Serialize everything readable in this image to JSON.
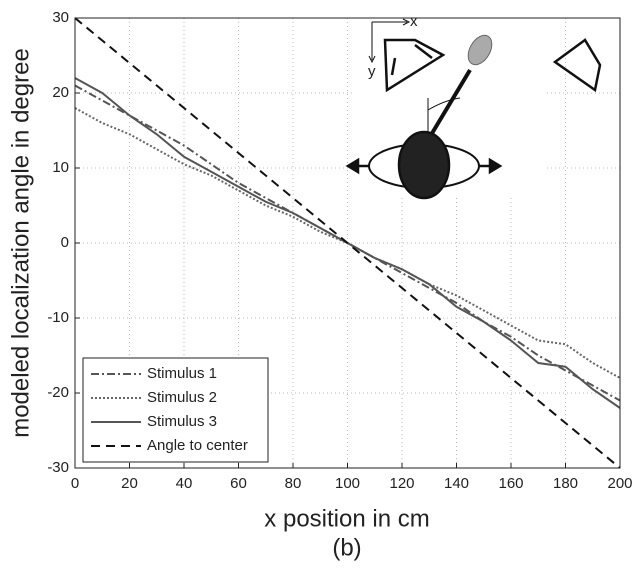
{
  "chart_data": {
    "type": "line",
    "xlabel": "x position in cm",
    "ylabel": "modeled localization angle in degree",
    "caption": "(b)",
    "inset_labels": [
      "x",
      "y"
    ],
    "x": [
      0,
      10,
      20,
      30,
      40,
      50,
      60,
      70,
      80,
      90,
      100,
      110,
      120,
      130,
      140,
      150,
      160,
      170,
      180,
      190,
      200
    ],
    "series": [
      {
        "name": "Stimulus 1",
        "color": "#555555",
        "dash": "8 3 2 3",
        "values": [
          21,
          19,
          17,
          15,
          13,
          10.5,
          8,
          6,
          4,
          2,
          0,
          -2,
          -4,
          -6,
          -8,
          -10.5,
          -12.5,
          -15,
          -17,
          -19,
          -21
        ]
      },
      {
        "name": "Stimulus 2",
        "color": "#666666",
        "dash": "2 2",
        "values": [
          18,
          16,
          14.5,
          12.5,
          10.5,
          9,
          7,
          5,
          3.5,
          1.5,
          0,
          -2,
          -3.5,
          -5.5,
          -7,
          -9,
          -11,
          -13,
          -13.5,
          -16,
          -18
        ]
      },
      {
        "name": "Stimulus 3",
        "color": "#555555",
        "dash": "",
        "values": [
          22,
          20,
          17,
          14.5,
          11.5,
          9.5,
          7.5,
          5.5,
          4,
          2,
          0,
          -2,
          -3.5,
          -5.5,
          -8.5,
          -10.5,
          -13,
          -16,
          -16.5,
          -19.5,
          -22
        ]
      },
      {
        "name": "Angle to center",
        "color": "#111111",
        "dash": "9 6",
        "values": [
          30,
          27,
          24,
          21,
          18,
          15,
          12,
          9,
          6,
          3,
          0,
          -3,
          -6,
          -9,
          -12,
          -15,
          -18,
          -21,
          -24,
          -27,
          -30
        ]
      }
    ],
    "xlim": [
      0,
      200
    ],
    "ylim": [
      -30,
      30
    ],
    "xticks": [
      0,
      20,
      40,
      60,
      80,
      100,
      120,
      140,
      160,
      180,
      200
    ],
    "yticks": [
      -30,
      -20,
      -10,
      0,
      10,
      20,
      30
    ],
    "grid": true,
    "legend": "lower left"
  }
}
